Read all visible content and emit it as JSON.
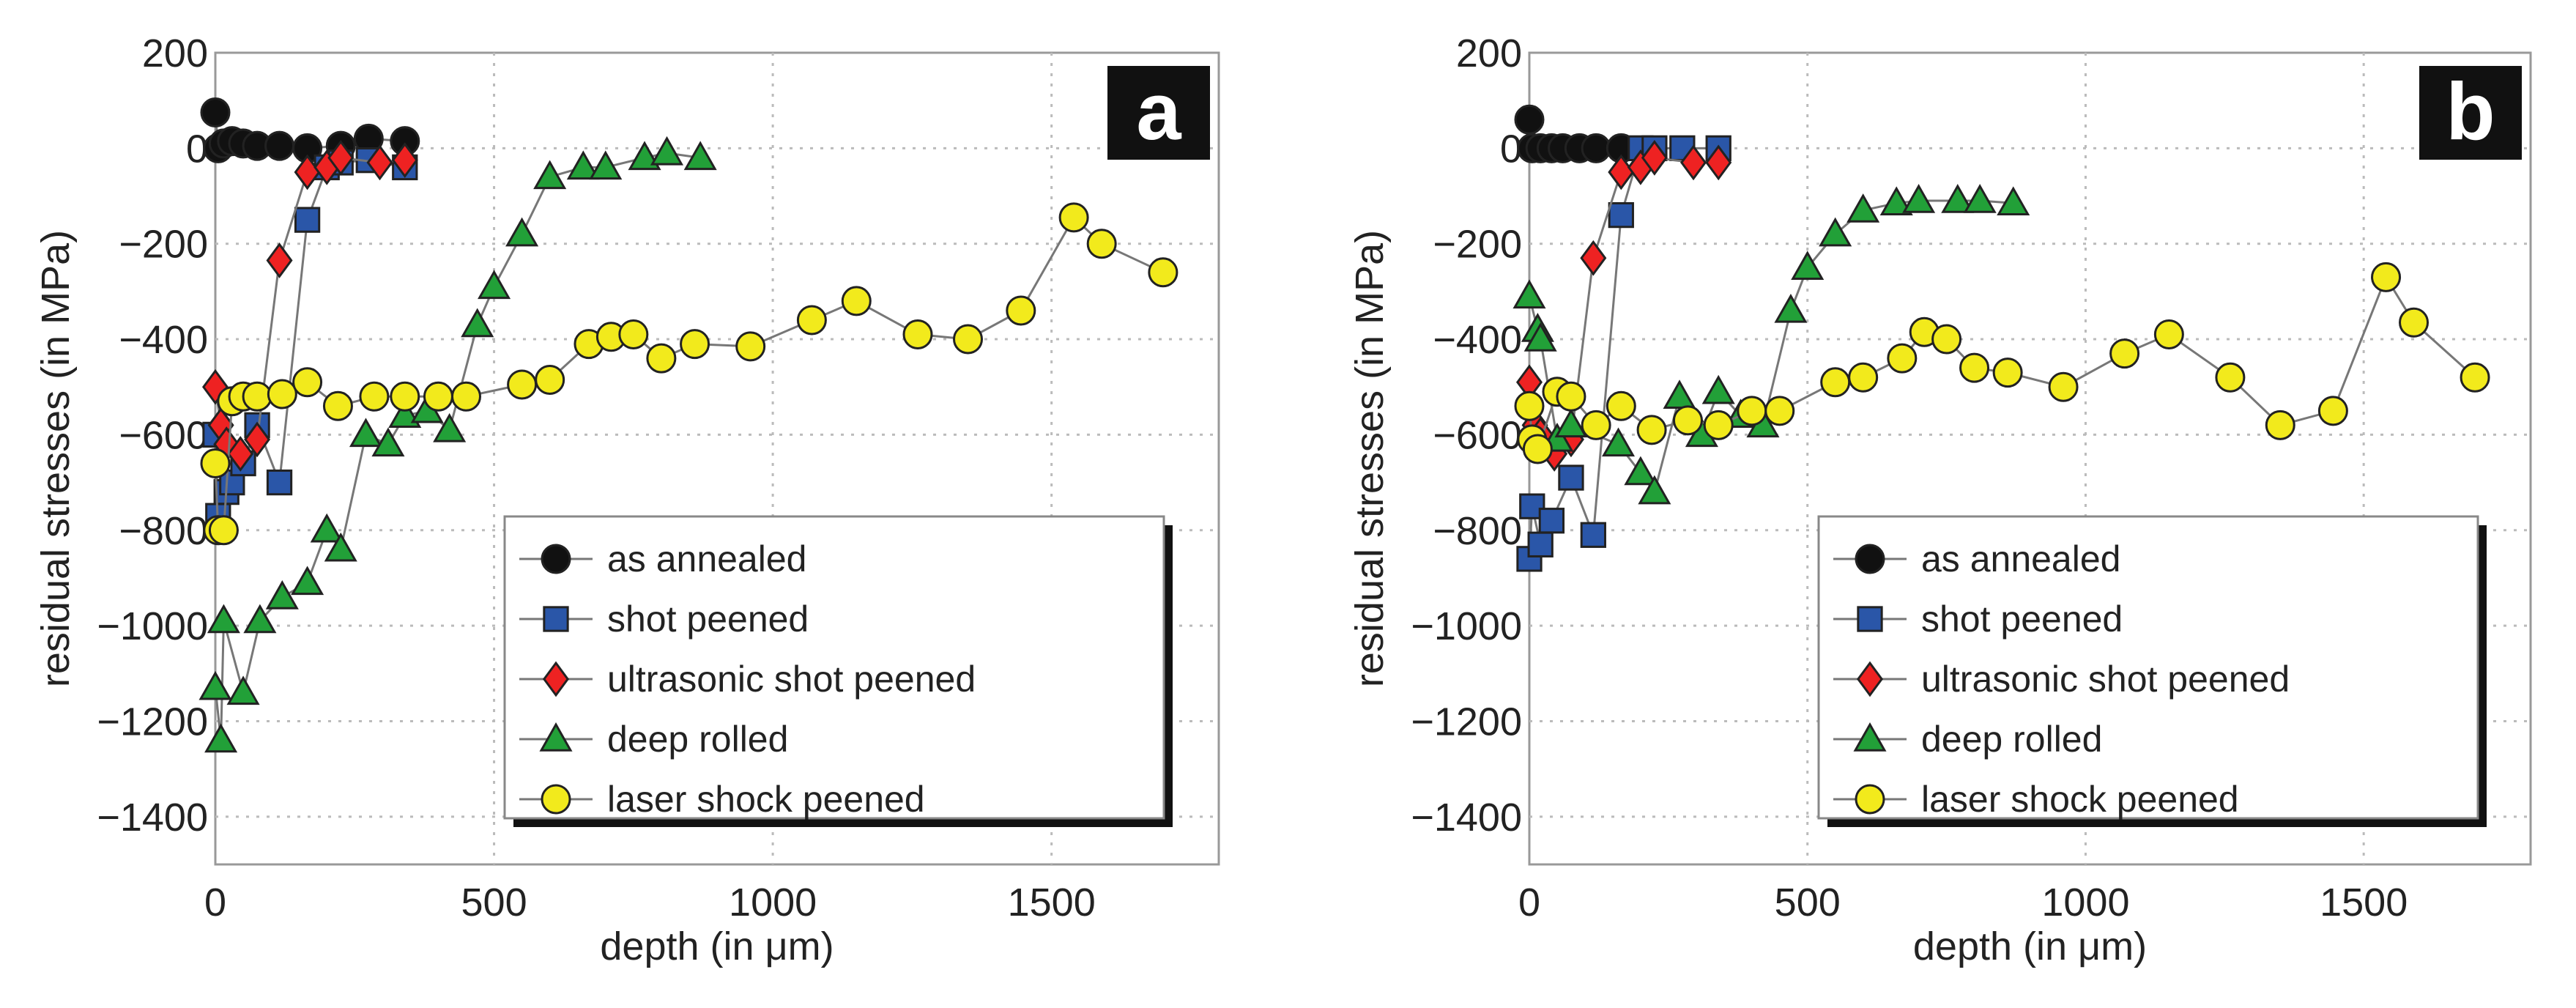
{
  "chart_data": [
    {
      "type": "line",
      "panel_label": "a",
      "xlabel": "depth (in μm)",
      "ylabel": "residual stresses (in MPa)",
      "xlim": [
        0,
        1800
      ],
      "ylim": [
        -1500,
        200
      ],
      "xticks": [
        0,
        500,
        1000,
        1500
      ],
      "yticks": [
        200,
        0,
        -200,
        -400,
        -600,
        -800,
        -1000,
        -1200,
        -1400
      ],
      "grid": true,
      "legend_position": "bottom-right",
      "series": [
        {
          "name": "as annealed",
          "marker": "circle",
          "color": "#111111",
          "x": [
            0,
            5,
            15,
            30,
            50,
            75,
            115,
            165,
            225,
            275,
            340
          ],
          "y": [
            75,
            0,
            10,
            15,
            10,
            5,
            5,
            0,
            5,
            20,
            15
          ]
        },
        {
          "name": "shot peened",
          "marker": "square",
          "color": "#2a56a8",
          "x": [
            0,
            5,
            20,
            30,
            50,
            75,
            115,
            165,
            200,
            225,
            275,
            340
          ],
          "y": [
            -600,
            -770,
            -720,
            -700,
            -660,
            -580,
            -700,
            -150,
            -40,
            -30,
            -25,
            -40
          ]
        },
        {
          "name": "ultrasonic shot peened",
          "marker": "diamond",
          "color": "#ee2222",
          "x": [
            0,
            10,
            20,
            45,
            75,
            115,
            165,
            200,
            225,
            295,
            340
          ],
          "y": [
            -500,
            -580,
            -620,
            -640,
            -610,
            -235,
            -50,
            -40,
            -20,
            -30,
            -25
          ]
        },
        {
          "name": "deep rolled",
          "marker": "triangle",
          "color": "#22a038",
          "x": [
            0,
            10,
            15,
            50,
            80,
            120,
            165,
            200,
            225,
            270,
            310,
            340,
            380,
            420,
            470,
            500,
            550,
            600,
            660,
            700,
            770,
            810,
            870
          ],
          "y": [
            -1130,
            -1240,
            -990,
            -1140,
            -990,
            -940,
            -910,
            -800,
            -840,
            -600,
            -620,
            -560,
            -550,
            -590,
            -370,
            -290,
            -180,
            -60,
            -40,
            -40,
            -20,
            -10,
            -20
          ]
        },
        {
          "name": "laser shock peened",
          "marker": "circle",
          "color": "#f2ea1c",
          "x": [
            0,
            5,
            15,
            30,
            50,
            75,
            120,
            165,
            220,
            285,
            340,
            400,
            450,
            550,
            600,
            670,
            710,
            750,
            800,
            860,
            960,
            1070,
            1150,
            1260,
            1350,
            1445,
            1540,
            1590,
            1700
          ],
          "y": [
            -660,
            -800,
            -800,
            -530,
            -520,
            -520,
            -515,
            -490,
            -540,
            -520,
            -520,
            -520,
            -520,
            -495,
            -485,
            -410,
            -395,
            -390,
            -440,
            -410,
            -415,
            -360,
            -320,
            -390,
            -400,
            -340,
            -145,
            -200,
            -260
          ]
        }
      ]
    },
    {
      "type": "line",
      "panel_label": "b",
      "xlabel": "depth (in μm)",
      "ylabel": "residual stresses (in MPa)",
      "xlim": [
        0,
        1800
      ],
      "ylim": [
        -1500,
        200
      ],
      "xticks": [
        0,
        500,
        1000,
        1500
      ],
      "yticks": [
        200,
        0,
        -200,
        -400,
        -600,
        -800,
        -1000,
        -1200,
        -1400
      ],
      "grid": true,
      "legend_position": "bottom-right",
      "series": [
        {
          "name": "as annealed",
          "marker": "circle",
          "color": "#111111",
          "x": [
            0,
            5,
            20,
            40,
            60,
            90,
            120,
            165
          ],
          "y": [
            60,
            0,
            0,
            0,
            0,
            0,
            0,
            0
          ]
        },
        {
          "name": "shot peened",
          "marker": "square",
          "color": "#2a56a8",
          "x": [
            0,
            5,
            20,
            40,
            75,
            115,
            165,
            200,
            225,
            275,
            340
          ],
          "y": [
            -860,
            -750,
            -830,
            -780,
            -690,
            -810,
            -140,
            0,
            0,
            0,
            0
          ]
        },
        {
          "name": "ultrasonic shot peened",
          "marker": "diamond",
          "color": "#ee2222",
          "x": [
            0,
            10,
            20,
            45,
            75,
            115,
            165,
            200,
            225,
            295,
            340
          ],
          "y": [
            -490,
            -580,
            -600,
            -640,
            -610,
            -230,
            -50,
            -40,
            -20,
            -30,
            -30
          ]
        },
        {
          "name": "deep rolled",
          "marker": "triangle",
          "color": "#22a038",
          "x": [
            0,
            15,
            20,
            50,
            75,
            160,
            200,
            225,
            270,
            310,
            340,
            380,
            420,
            470,
            500,
            550,
            600,
            660,
            700,
            770,
            810,
            870
          ],
          "y": [
            -310,
            -380,
            -400,
            -610,
            -580,
            -620,
            -680,
            -720,
            -520,
            -600,
            -510,
            -560,
            -580,
            -340,
            -250,
            -180,
            -130,
            -115,
            -110,
            -110,
            -110,
            -115
          ]
        },
        {
          "name": "laser shock peened",
          "marker": "circle",
          "color": "#f2ea1c",
          "x": [
            0,
            5,
            15,
            50,
            75,
            120,
            165,
            220,
            285,
            340,
            400,
            450,
            550,
            600,
            670,
            710,
            750,
            800,
            860,
            960,
            1070,
            1150,
            1260,
            1350,
            1445,
            1540,
            1590,
            1700
          ],
          "y": [
            -540,
            -610,
            -630,
            -510,
            -520,
            -580,
            -540,
            -590,
            -570,
            -580,
            -550,
            -550,
            -490,
            -480,
            -440,
            -385,
            -400,
            -460,
            -470,
            -500,
            -430,
            -390,
            -480,
            -580,
            -550,
            -270,
            -365,
            -480
          ]
        }
      ]
    }
  ]
}
